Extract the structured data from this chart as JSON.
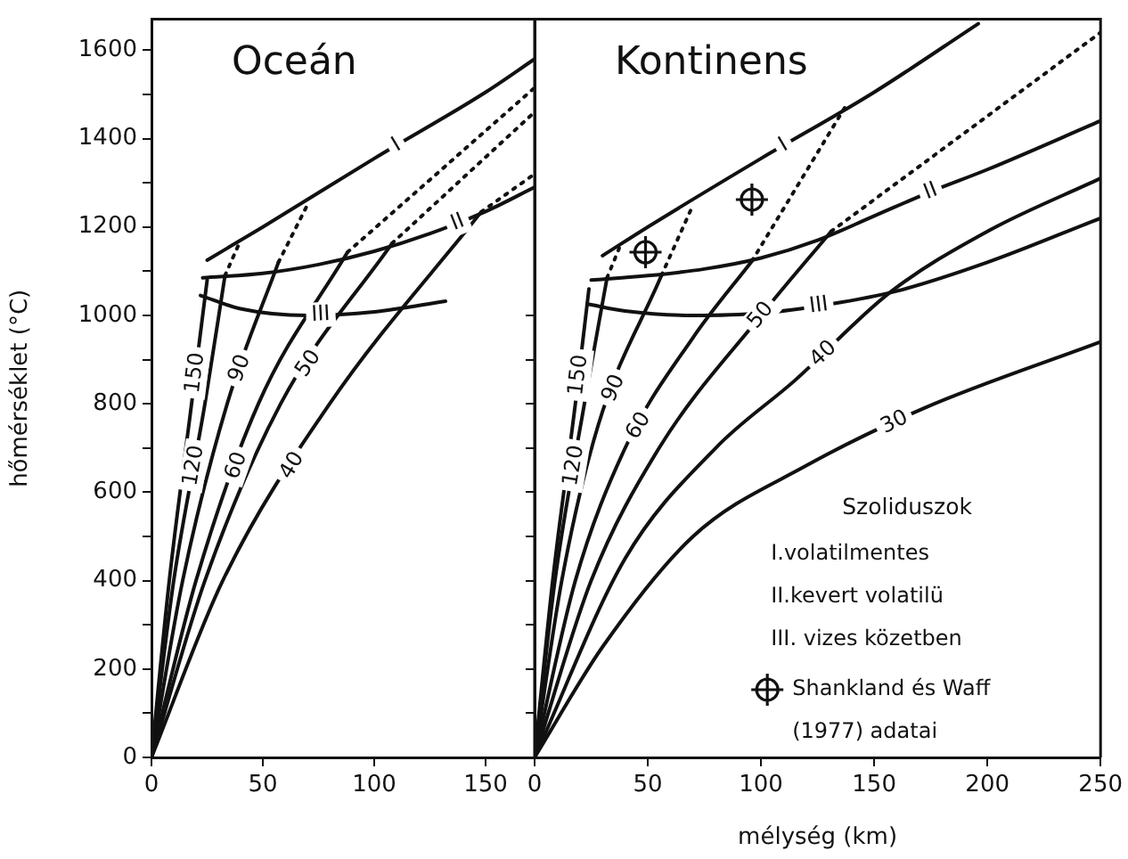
{
  "chart_data": [
    {
      "type": "line",
      "title": "Oceán",
      "ylabel": "hőmérséklet (°C)",
      "xlim": [
        0,
        172
      ],
      "xticks": [
        0,
        50,
        100,
        150
      ],
      "ylim": [
        0,
        1670
      ],
      "yticks": [
        0,
        {
          "value": 100,
          "label": null
        },
        200,
        {
          "value": 300,
          "label": null
        },
        400,
        {
          "value": 500,
          "label": null
        },
        600,
        {
          "value": 700,
          "label": null
        },
        800,
        {
          "value": 900,
          "label": null
        },
        1000,
        {
          "value": 1100,
          "label": null
        },
        1200,
        {
          "value": 1300,
          "label": null
        },
        1400,
        {
          "value": 1500,
          "label": null
        },
        1600
      ],
      "series": [
        {
          "name": "I",
          "color": "#111111",
          "x": [
            25,
            50,
            100,
            150,
            172
          ],
          "values": [
            1125,
            1200,
            1355,
            1505,
            1580
          ]
        },
        {
          "name": "II",
          "color": "#111111",
          "x": [
            23,
            50,
            75,
            100,
            125,
            150,
            172
          ],
          "values": [
            1085,
            1095,
            1115,
            1145,
            1185,
            1235,
            1290
          ]
        },
        {
          "name": "III",
          "color": "#111111",
          "x": [
            22,
            40,
            70,
            100,
            132
          ],
          "values": [
            1045,
            1015,
            1000,
            1008,
            1032
          ]
        },
        {
          "name": "150",
          "color": "#111111",
          "x": [
            0,
            8,
            18,
            25
          ],
          "values": [
            0,
            400,
            800,
            1080
          ]
        },
        {
          "name": "120",
          "color": "#111111",
          "x": [
            0,
            10,
            24,
            33
          ],
          "values": [
            0,
            400,
            800,
            1090
          ]
        },
        {
          "name": "90",
          "color": "#111111",
          "x": [
            0,
            14,
            34,
            57
          ],
          "values": [
            0,
            400,
            800,
            1120
          ]
        },
        {
          "name": "60",
          "color": "#111111",
          "x": [
            0,
            20,
            48,
            88
          ],
          "values": [
            0,
            400,
            800,
            1143
          ]
        },
        {
          "name": "50",
          "color": "#111111",
          "x": [
            0,
            24,
            58,
            108
          ],
          "values": [
            0,
            400,
            800,
            1163
          ]
        },
        {
          "name": "40",
          "color": "#111111",
          "x": [
            0,
            32,
            80,
            148
          ],
          "values": [
            0,
            400,
            800,
            1234
          ]
        },
        {
          "color": "#111111",
          "line_style": "dotted",
          "x": [
            33,
            40
          ],
          "values": [
            1090,
            1170
          ]
        },
        {
          "color": "#111111",
          "line_style": "dotted",
          "x": [
            57,
            70
          ],
          "values": [
            1120,
            1250
          ]
        },
        {
          "color": "#111111",
          "line_style": "dotted",
          "x": [
            88,
            172
          ],
          "values": [
            1143,
            1515
          ]
        },
        {
          "color": "#111111",
          "line_style": "dotted",
          "x": [
            108,
            172
          ],
          "values": [
            1163,
            1460
          ]
        },
        {
          "color": "#111111",
          "line_style": "dotted",
          "x": [
            148,
            172
          ],
          "values": [
            1234,
            1320
          ]
        }
      ]
    },
    {
      "type": "line",
      "title": "Kontinens",
      "xlabel": "mélység (km)",
      "xlim": [
        0,
        250
      ],
      "xticks": [
        0,
        50,
        100,
        150,
        200,
        250
      ],
      "ylim": [
        0,
        1670
      ],
      "yticks": [
        {
          "value": 0,
          "label": null
        },
        {
          "value": 100,
          "label": null
        },
        200,
        {
          "value": 300,
          "label": null
        },
        400,
        {
          "value": 500,
          "label": null
        },
        600,
        {
          "value": 700,
          "label": null
        },
        800,
        {
          "value": 900,
          "label": null
        },
        1000
      ],
      "tick_labels": "x",
      "legend": "bottom right",
      "legend_title": "Szoliduszok",
      "annotations": [
        "I.volatilmentes",
        "II.kevert volatilü",
        "III. vizes közetben"
      ],
      "series": [
        {
          "name": "I",
          "color": "#111111",
          "x": [
            30,
            50,
            100,
            150,
            196
          ],
          "values": [
            1135,
            1200,
            1355,
            1505,
            1660
          ]
        },
        {
          "name": "II",
          "color": "#111111",
          "x": [
            25,
            50,
            75,
            100,
            125,
            150,
            175,
            200,
            250
          ],
          "values": [
            1080,
            1090,
            1105,
            1130,
            1170,
            1225,
            1280,
            1330,
            1440
          ]
        },
        {
          "name": "III",
          "color": "#111111",
          "x": [
            24,
            40,
            70,
            100,
            130,
            160,
            200,
            250
          ],
          "values": [
            1025,
            1010,
            1000,
            1005,
            1025,
            1055,
            1120,
            1220
          ]
        },
        {
          "name": "150",
          "color": "#111111",
          "x": [
            0,
            8,
            18,
            24
          ],
          "values": [
            0,
            400,
            800,
            1060
          ]
        },
        {
          "name": "120",
          "color": "#111111",
          "x": [
            0,
            9,
            22,
            32
          ],
          "values": [
            0,
            400,
            800,
            1085
          ]
        },
        {
          "name": "90",
          "color": "#111111",
          "x": [
            0,
            12,
            28,
            56
          ],
          "values": [
            0,
            400,
            750,
            1090
          ]
        },
        {
          "name": "60",
          "color": "#111111",
          "x": [
            0,
            18,
            40,
            70,
            96
          ],
          "values": [
            0,
            400,
            700,
            950,
            1123
          ]
        },
        {
          "name": "50",
          "color": "#111111",
          "x": [
            0,
            25,
            55,
            100,
            131
          ],
          "values": [
            0,
            400,
            700,
            1000,
            1190
          ]
        },
        {
          "name": "40",
          "color": "#111111",
          "x": [
            0,
            40,
            80,
            115,
            157,
            200,
            250
          ],
          "values": [
            0,
            450,
            700,
            853,
            1052,
            1190,
            1310
          ]
        },
        {
          "name": "30",
          "color": "#111111",
          "x": [
            0,
            30,
            70,
            120,
            172,
            250
          ],
          "values": [
            0,
            250,
            500,
            660,
            790,
            940
          ]
        },
        {
          "color": "#111111",
          "line_style": "dotted",
          "x": [
            32,
            38
          ],
          "values": [
            1085,
            1160
          ]
        },
        {
          "color": "#111111",
          "line_style": "dotted",
          "x": [
            56,
            70
          ],
          "values": [
            1090,
            1250
          ]
        },
        {
          "color": "#111111",
          "line_style": "dotted",
          "x": [
            96,
            137
          ],
          "values": [
            1123,
            1470
          ]
        },
        {
          "color": "#111111",
          "line_style": "dotted",
          "x": [
            131,
            250
          ],
          "values": [
            1190,
            1640
          ]
        },
        {
          "name": "Shankland és Waff (1977) adatai",
          "type": "scatter",
          "color": "#111111",
          "x": [
            49,
            96
          ],
          "values": [
            1143,
            1262
          ]
        }
      ]
    }
  ]
}
